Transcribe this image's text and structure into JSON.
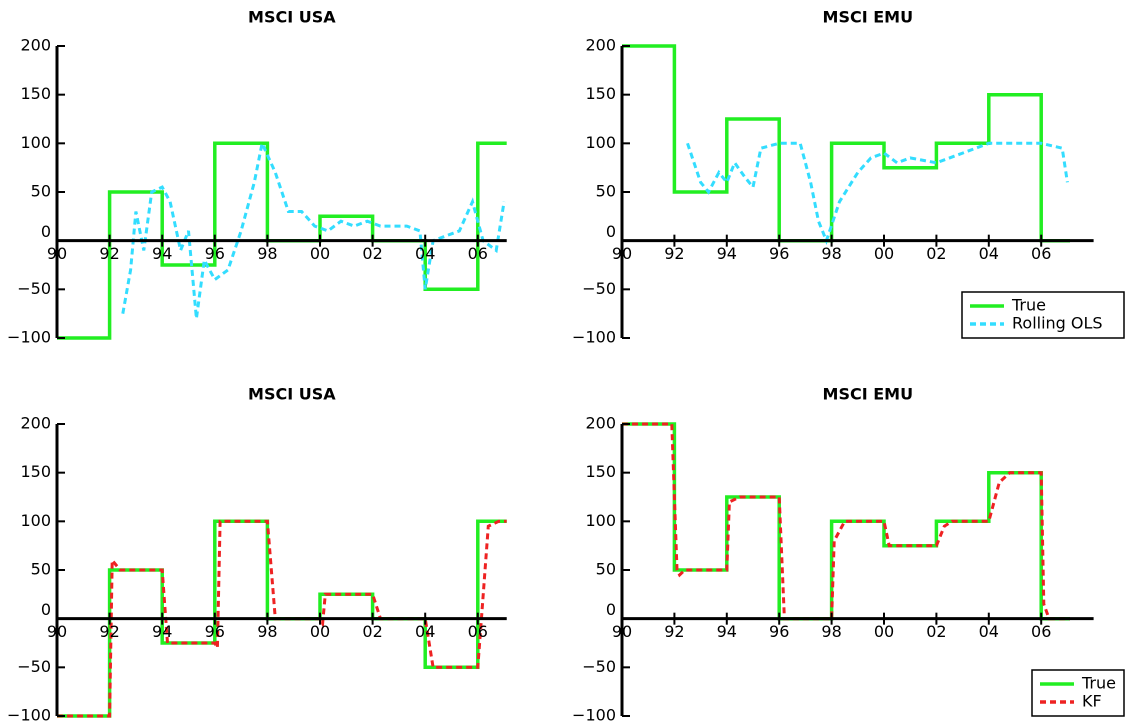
{
  "chart_data": [
    {
      "type": "line",
      "title": "MSCI USA",
      "xlim": [
        1990,
        2007.1
      ],
      "ylim": [
        -100,
        200
      ],
      "xticks": [
        {
          "value": 1990,
          "label": "90"
        },
        {
          "value": 1992,
          "label": "92"
        },
        {
          "value": 1994,
          "label": "94"
        },
        {
          "value": 1996,
          "label": "96"
        },
        {
          "value": 1998,
          "label": "98"
        },
        {
          "value": 2000,
          "label": "00"
        },
        {
          "value": 2002,
          "label": "02"
        },
        {
          "value": 2004,
          "label": "04"
        },
        {
          "value": 2006,
          "label": "06"
        }
      ],
      "yticks": [
        {
          "value": -100,
          "label": "−100"
        },
        {
          "value": -50,
          "label": "−50"
        },
        0,
        50,
        100,
        150,
        200
      ],
      "series": [
        {
          "name": "True",
          "color": "#22ee22",
          "style": "solid",
          "x": [
            1990,
            1992,
            1992,
            1994,
            1994,
            1996,
            1996,
            1998,
            1998,
            2000,
            2000,
            2002,
            2002,
            2004,
            2004,
            2006,
            2006,
            2007.1
          ],
          "values": [
            -100,
            -100,
            50,
            50,
            -25,
            -25,
            100,
            100,
            0,
            0,
            25,
            25,
            0,
            0,
            -50,
            -50,
            100,
            100
          ]
        },
        {
          "name": "Rolling OLS",
          "color": "#33ddff",
          "style": "dashed",
          "x": [
            1992.5,
            1992.8,
            1993.0,
            1993.3,
            1993.6,
            1994.0,
            1994.3,
            1994.7,
            1995.0,
            1995.3,
            1995.6,
            1996.0,
            1996.5,
            1997.0,
            1997.5,
            1997.8,
            1998.3,
            1998.8,
            1999.3,
            1999.8,
            2000.3,
            2000.8,
            2001.3,
            2001.8,
            2002.3,
            2002.8,
            2003.3,
            2003.8,
            2004.0,
            2004.3,
            2004.8,
            2005.3,
            2005.8,
            2006.2,
            2006.7,
            2007.0
          ],
          "values": [
            -75,
            -30,
            30,
            -10,
            50,
            55,
            40,
            -10,
            10,
            -80,
            -20,
            -40,
            -30,
            10,
            60,
            100,
            70,
            30,
            30,
            15,
            10,
            20,
            15,
            20,
            15,
            15,
            15,
            10,
            -50,
            0,
            5,
            10,
            40,
            0,
            -10,
            40
          ]
        }
      ]
    },
    {
      "type": "line",
      "title": "MSCI EMU",
      "xlim": [
        1990,
        2008
      ],
      "ylim": [
        -100,
        200
      ],
      "xticks": [
        {
          "value": 1990,
          "label": "90"
        },
        {
          "value": 1992,
          "label": "92"
        },
        {
          "value": 1994,
          "label": "94"
        },
        {
          "value": 1996,
          "label": "96"
        },
        {
          "value": 1998,
          "label": "98"
        },
        {
          "value": 2000,
          "label": "00"
        },
        {
          "value": 2002,
          "label": "02"
        },
        {
          "value": 2004,
          "label": "04"
        },
        {
          "value": 2006,
          "label": "06"
        }
      ],
      "yticks": [
        {
          "value": -100,
          "label": "−100"
        },
        {
          "value": -50,
          "label": "−50"
        },
        0,
        50,
        100,
        150,
        200
      ],
      "legend": "lower right",
      "series": [
        {
          "name": "True",
          "color": "#22ee22",
          "style": "solid",
          "x": [
            1990,
            1992,
            1992,
            1994,
            1994,
            1996,
            1996,
            1998,
            1998,
            2000,
            2000,
            2002,
            2002,
            2004,
            2004,
            2006,
            2006,
            2007.1
          ],
          "values": [
            200,
            200,
            50,
            50,
            125,
            125,
            0,
            0,
            100,
            100,
            75,
            75,
            100,
            100,
            150,
            150,
            0,
            0
          ]
        },
        {
          "name": "Rolling OLS",
          "color": "#33ddff",
          "style": "dashed",
          "x": [
            1992.5,
            1993.0,
            1993.3,
            1993.7,
            1994.0,
            1994.3,
            1994.7,
            1995.0,
            1995.3,
            1996.0,
            1996.8,
            1997.2,
            1997.5,
            1997.8,
            1998.3,
            1999.0,
            1999.5,
            2000.0,
            2000.5,
            2001.0,
            2002.0,
            2003.0,
            2004.0,
            2005.0,
            2006.0,
            2006.8,
            2007.0
          ],
          "values": [
            100,
            60,
            50,
            70,
            60,
            80,
            65,
            55,
            95,
            100,
            100,
            60,
            20,
            0,
            40,
            70,
            85,
            90,
            80,
            85,
            80,
            90,
            100,
            100,
            100,
            95,
            60
          ]
        }
      ]
    },
    {
      "type": "line",
      "title": "MSCI USA",
      "xlim": [
        1990,
        2007.1
      ],
      "ylim": [
        -100,
        200
      ],
      "xticks": [
        {
          "value": 1990,
          "label": "90"
        },
        {
          "value": 1992,
          "label": "92"
        },
        {
          "value": 1994,
          "label": "94"
        },
        {
          "value": 1996,
          "label": "96"
        },
        {
          "value": 1998,
          "label": "98"
        },
        {
          "value": 2000,
          "label": "00"
        },
        {
          "value": 2002,
          "label": "02"
        },
        {
          "value": 2004,
          "label": "04"
        },
        {
          "value": 2006,
          "label": "06"
        }
      ],
      "yticks": [
        {
          "value": -100,
          "label": "−100"
        },
        {
          "value": -50,
          "label": "−50"
        },
        0,
        50,
        100,
        150,
        200
      ],
      "series": [
        {
          "name": "True",
          "color": "#22ee22",
          "style": "solid",
          "x": [
            1990,
            1992,
            1992,
            1994,
            1994,
            1996,
            1996,
            1998,
            1998,
            2000,
            2000,
            2002,
            2002,
            2004,
            2004,
            2006,
            2006,
            2007.1
          ],
          "values": [
            -100,
            -100,
            50,
            50,
            -25,
            -25,
            100,
            100,
            0,
            0,
            25,
            25,
            0,
            0,
            -50,
            -50,
            100,
            100
          ]
        },
        {
          "name": "KF",
          "color": "#ee2222",
          "style": "dashed",
          "x": [
            1990,
            1992,
            1992.1,
            1992.4,
            1994,
            1994.2,
            1996,
            1996.1,
            1996.2,
            1998,
            1998.3,
            2000,
            2000.1,
            2000.2,
            2002,
            2002.3,
            2004,
            2004.3,
            2006,
            2006.4,
            2006.8,
            2007.1
          ],
          "values": [
            -100,
            -100,
            60,
            50,
            50,
            -25,
            -25,
            -30,
            100,
            100,
            0,
            0,
            -5,
            25,
            25,
            0,
            0,
            -50,
            -50,
            95,
            100,
            100
          ]
        }
      ]
    },
    {
      "type": "line",
      "title": "MSCI EMU",
      "xlim": [
        1990,
        2008
      ],
      "ylim": [
        -100,
        200
      ],
      "xticks": [
        {
          "value": 1990,
          "label": "90"
        },
        {
          "value": 1992,
          "label": "92"
        },
        {
          "value": 1994,
          "label": "94"
        },
        {
          "value": 1996,
          "label": "96"
        },
        {
          "value": 1998,
          "label": "98"
        },
        {
          "value": 2000,
          "label": "00"
        },
        {
          "value": 2002,
          "label": "02"
        },
        {
          "value": 2004,
          "label": "04"
        },
        {
          "value": 2006,
          "label": "06"
        }
      ],
      "yticks": [
        {
          "value": -100,
          "label": "−100"
        },
        {
          "value": -50,
          "label": "−50"
        },
        0,
        50,
        100,
        150,
        200
      ],
      "legend": "lower right",
      "series": [
        {
          "name": "True",
          "color": "#22ee22",
          "style": "solid",
          "x": [
            1990,
            1992,
            1992,
            1994,
            1994,
            1996,
            1996,
            1998,
            1998,
            2000,
            2000,
            2002,
            2002,
            2004,
            2004,
            2006,
            2006,
            2007.1
          ],
          "values": [
            200,
            200,
            50,
            50,
            125,
            125,
            0,
            0,
            100,
            100,
            75,
            75,
            100,
            100,
            150,
            150,
            0,
            0
          ]
        },
        {
          "name": "KF",
          "color": "#ee2222",
          "style": "dashed",
          "x": [
            1990,
            1991.9,
            1992.1,
            1992.2,
            1992.4,
            1994,
            1994.1,
            1994.5,
            1996,
            1996.2,
            1998,
            1998.1,
            1998.5,
            2000,
            2000.2,
            2002,
            2002.3,
            2002.6,
            2004,
            2004.4,
            2004.8,
            2006,
            2006.1,
            2006.3,
            2007.1
          ],
          "values": [
            200,
            200,
            50,
            45,
            50,
            50,
            120,
            125,
            125,
            0,
            0,
            80,
            100,
            100,
            75,
            75,
            95,
            100,
            100,
            140,
            150,
            150,
            15,
            0,
            0
          ]
        }
      ]
    }
  ]
}
